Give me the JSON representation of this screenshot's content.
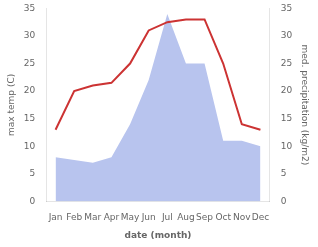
{
  "chart_data": {
    "type": "line",
    "xlabel": "date (month)",
    "ylabel": "max temp (C)",
    "y2label": "med. precipitation (kg/m2)",
    "categories": [
      "Jan",
      "Feb",
      "Mar",
      "Apr",
      "May",
      "Jun",
      "Jul",
      "Aug",
      "Sep",
      "Oct",
      "Nov",
      "Dec"
    ],
    "series": [
      {
        "type": "area",
        "axis": "y2",
        "color": "#b8c4ee",
        "values": [
          8,
          7.5,
          7,
          8,
          14,
          22,
          34,
          25,
          25,
          11,
          11,
          10
        ]
      },
      {
        "type": "line",
        "color": "#cc3333",
        "values": [
          13,
          20,
          21,
          21.5,
          25,
          31,
          32.5,
          33,
          33,
          25,
          14,
          13
        ]
      }
    ],
    "ylim": [
      0,
      35
    ],
    "yticks": [
      0,
      5,
      10,
      15,
      20,
      25,
      30,
      35
    ],
    "y2lim": [
      0,
      35
    ],
    "y2ticks": [
      0,
      5,
      10,
      15,
      20,
      25,
      30,
      35
    ],
    "grid": false
  }
}
